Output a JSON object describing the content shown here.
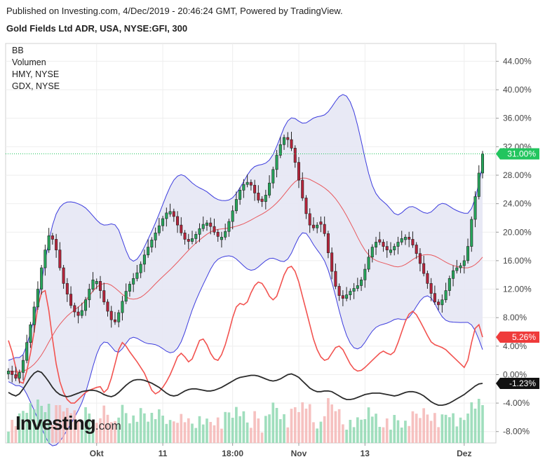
{
  "header": {
    "published": "Published on Investing.com, 4/Dec/2019 - 20:46:24 GMT, Powered by TradingView.",
    "subtitle": "Gold Fields Ltd ADR, USA, NYSE:GFI, 300"
  },
  "legend": [
    "BB",
    "Volumen",
    "HMY, NYSE",
    "GDX, NYSE"
  ],
  "brand": {
    "name": "Investing",
    "suffix": ".com"
  },
  "colors": {
    "up": "#26a65b",
    "down": "#b7243b",
    "bb_band": "#3c3cde",
    "bb_fill": "#e6e7f4",
    "bb_mid": "#e8585d",
    "hmy": "#f25350",
    "gdx": "#2b2b2b",
    "vol_up": "#8fd8b2",
    "vol_down": "#f5b6b5",
    "gfi_badge": "#22c55e",
    "hmy_badge": "#ef3b3b",
    "gdx_badge": "#111111",
    "current_line": "#22c55e"
  },
  "chart_data": {
    "type": "candlestick",
    "title": "Gold Fields Ltd ADR, USA, NYSE:GFI, 300",
    "y_unit": "%",
    "ylim": [
      -9.6,
      46.5
    ],
    "y_ticks": [
      44,
      40,
      36,
      32,
      28,
      24,
      20,
      16,
      12,
      8,
      4,
      0,
      -4,
      -8
    ],
    "y_tick_labels": [
      "44.00%",
      "40.00%",
      "36.00%",
      "32.00%",
      "28.00%",
      "24.00%",
      "20.00%",
      "16.00%",
      "12.00%",
      "8.00%",
      "4.00%",
      "0.00%",
      "-4.00%",
      "-8.00%"
    ],
    "x_labels": [
      {
        "label": "Okt",
        "bar": 24
      },
      {
        "label": "11",
        "bar": 42
      },
      {
        "label": "18:00",
        "bar": 61
      },
      {
        "label": "Nov",
        "bar": 79
      },
      {
        "label": "13",
        "bar": 97
      },
      {
        "label": "Dez",
        "bar": 124
      }
    ],
    "bar_count": 130,
    "current_values": {
      "GFI": "31.00%",
      "HMY": "5.26%",
      "GDX": "-1.23%"
    },
    "gfi_close": [
      0.5,
      0.0,
      -0.5,
      0.3,
      2.0,
      4.5,
      7.0,
      9.5,
      12.0,
      15.0,
      17.5,
      19.5,
      19.0,
      17.5,
      15.0,
      12.8,
      11.3,
      9.7,
      8.8,
      8.3,
      9.0,
      10.5,
      12.0,
      13.3,
      13.1,
      11.8,
      10.2,
      8.9,
      7.7,
      7.4,
      8.7,
      10.3,
      11.7,
      12.7,
      13.5,
      14.3,
      15.5,
      16.8,
      17.9,
      18.9,
      19.9,
      20.9,
      21.9,
      22.7,
      22.9,
      22.2,
      21.0,
      19.9,
      19.0,
      18.7,
      19.1,
      19.7,
      20.5,
      21.1,
      21.3,
      20.8,
      20.0,
      19.4,
      19.3,
      20.1,
      21.5,
      23.0,
      24.6,
      25.9,
      26.7,
      27.0,
      26.6,
      25.5,
      24.5,
      24.3,
      25.2,
      26.9,
      28.8,
      30.8,
      32.3,
      33.3,
      33.0,
      31.8,
      29.8,
      27.3,
      24.8,
      22.6,
      21.0,
      20.6,
      21.0,
      21.1,
      19.8,
      17.1,
      14.5,
      12.4,
      11.1,
      10.7,
      11.2,
      11.7,
      12.1,
      12.5,
      13.3,
      14.8,
      16.5,
      17.9,
      18.6,
      18.6,
      18.0,
      17.5,
      17.5,
      18.0,
      18.6,
      19.1,
      19.3,
      19.0,
      18.2,
      17.0,
      15.6,
      14.2,
      12.8,
      11.4,
      10.2,
      9.8,
      10.5,
      11.8,
      13.5,
      14.6,
      15.0,
      15.3,
      16.0,
      18.0,
      21.8,
      25.0,
      28.3,
      31.0
    ],
    "hmy": [
      4.8,
      3.2,
      1.0,
      -1.0,
      -1.2,
      0.5,
      3.0,
      6.0,
      9.5,
      11.5,
      11.8,
      9.0,
      5.0,
      1.5,
      -1.0,
      -2.5,
      -3.5,
      -4.0,
      -4.0,
      -3.5,
      -3.0,
      -2.5,
      -2.2,
      -2.0,
      -1.8,
      -1.7,
      -2.5,
      -2.0,
      -0.5,
      1.5,
      3.5,
      4.5,
      4.0,
      3.2,
      2.5,
      1.8,
      1.0,
      0.2,
      -1.0,
      -2.2,
      -2.7,
      -2.4,
      -1.8,
      -1.0,
      0.0,
      1.2,
      2.5,
      3.0,
      2.5,
      1.8,
      2.2,
      3.5,
      4.8,
      5.0,
      4.2,
      3.0,
      2.2,
      2.0,
      2.8,
      4.2,
      6.0,
      8.0,
      9.5,
      10.0,
      9.8,
      10.2,
      11.5,
      12.5,
      13.0,
      12.8,
      12.0,
      11.0,
      10.5,
      11.0,
      12.5,
      14.0,
      15.0,
      15.2,
      14.5,
      13.0,
      11.0,
      9.0,
      7.0,
      5.0,
      3.5,
      2.5,
      2.0,
      2.2,
      3.0,
      3.8,
      4.0,
      3.5,
      2.5,
      1.5,
      0.8,
      0.5,
      0.6,
      1.0,
      1.5,
      2.0,
      2.5,
      3.0,
      3.3,
      3.0,
      2.8,
      3.2,
      4.5,
      6.0,
      7.5,
      8.5,
      8.9,
      8.4,
      7.5,
      6.5,
      5.5,
      4.6,
      4.2,
      4.0,
      3.8,
      3.5,
      3.0,
      2.5,
      2.0,
      1.5,
      1.0,
      2.0,
      4.5,
      6.5,
      7.0,
      5.26
    ],
    "gdx": [
      -2.5,
      -2.8,
      -3.0,
      -2.7,
      -2.0,
      -1.2,
      -0.4,
      0.2,
      0.5,
      0.3,
      -0.3,
      -1.0,
      -1.8,
      -2.4,
      -2.8,
      -3.0,
      -3.1,
      -3.0,
      -2.8,
      -2.6,
      -2.4,
      -2.3,
      -2.2,
      -2.2,
      -2.3,
      -2.5,
      -2.8,
      -3.0,
      -3.1,
      -2.9,
      -2.5,
      -2.0,
      -1.5,
      -1.1,
      -0.8,
      -0.7,
      -0.7,
      -0.8,
      -1.0,
      -1.2,
      -1.5,
      -1.8,
      -2.2,
      -2.6,
      -2.9,
      -3.0,
      -2.9,
      -2.6,
      -2.3,
      -2.1,
      -2.0,
      -2.0,
      -2.1,
      -2.2,
      -2.3,
      -2.3,
      -2.2,
      -2.0,
      -1.8,
      -1.5,
      -1.2,
      -0.9,
      -0.6,
      -0.4,
      -0.3,
      -0.2,
      -0.1,
      -0.1,
      -0.2,
      -0.4,
      -0.6,
      -0.8,
      -0.9,
      -0.8,
      -0.6,
      -0.3,
      0.0,
      0.1,
      -0.1,
      -0.4,
      -0.9,
      -1.4,
      -1.9,
      -2.2,
      -2.4,
      -2.4,
      -2.3,
      -2.3,
      -2.4,
      -2.7,
      -3.0,
      -3.3,
      -3.5,
      -3.5,
      -3.4,
      -3.2,
      -3.0,
      -2.8,
      -2.7,
      -2.6,
      -2.6,
      -2.6,
      -2.7,
      -2.8,
      -2.9,
      -3.0,
      -2.9,
      -2.7,
      -2.5,
      -2.4,
      -2.4,
      -2.5,
      -2.7,
      -3.0,
      -3.4,
      -3.8,
      -4.1,
      -4.3,
      -4.3,
      -4.2,
      -4.0,
      -3.7,
      -3.4,
      -3.1,
      -2.8,
      -2.4,
      -2.0,
      -1.6,
      -1.3,
      -1.23
    ]
  }
}
